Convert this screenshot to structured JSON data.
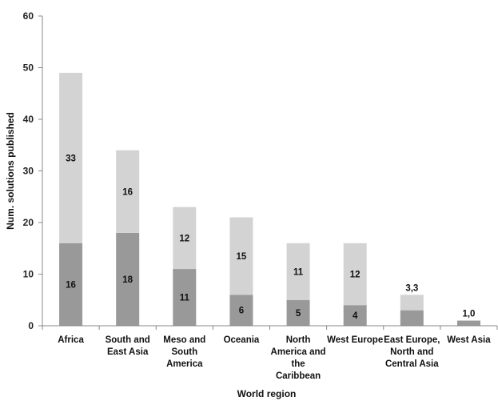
{
  "chart_data": {
    "type": "bar",
    "stacked": true,
    "title": "",
    "xlabel": "World region",
    "ylabel": "Num. solutions published",
    "ylim": [
      0,
      60
    ],
    "yticks": [
      0,
      10,
      20,
      30,
      40,
      50,
      60
    ],
    "grid": false,
    "categories": [
      [
        "Africa"
      ],
      [
        "South and",
        "East Asia"
      ],
      [
        "Meso and",
        "South",
        "America"
      ],
      [
        "Oceania"
      ],
      [
        "North",
        "America and",
        "the",
        "Caribbean"
      ],
      [
        "West Europe"
      ],
      [
        "East Europe,",
        "North and",
        "Central Asia"
      ],
      [
        "West Asia"
      ]
    ],
    "series": [
      {
        "values": [
          16,
          18,
          11,
          6,
          5,
          4,
          3,
          1
        ],
        "labels": [
          "16",
          "18",
          "11",
          "6",
          "5",
          "4",
          "",
          ""
        ],
        "color": "#999999"
      },
      {
        "values": [
          33,
          16,
          12,
          15,
          11,
          12,
          3,
          0
        ],
        "labels": [
          "33",
          "16",
          "12",
          "15",
          "11",
          "12",
          "",
          ""
        ],
        "color": "#d3d3d3"
      }
    ],
    "combined_labels": [
      "",
      "",
      "",
      "",
      "",
      "",
      "3,3",
      "1,0"
    ]
  }
}
